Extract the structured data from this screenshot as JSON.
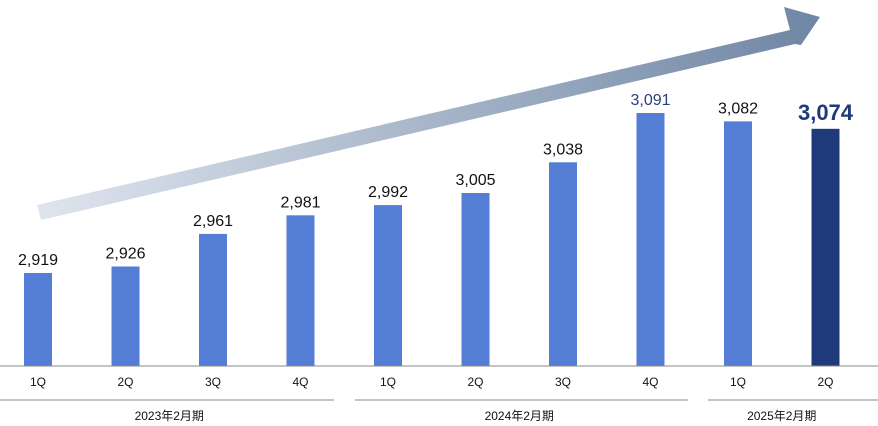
{
  "chart_data": {
    "type": "bar",
    "categories": [
      "1Q",
      "2Q",
      "3Q",
      "4Q",
      "1Q",
      "2Q",
      "3Q",
      "4Q",
      "1Q",
      "2Q"
    ],
    "values": [
      2919,
      2926,
      2961,
      2981,
      2992,
      3005,
      3038,
      3091,
      3082,
      3074
    ],
    "value_labels": [
      "2,919",
      "2,926",
      "2,961",
      "2,981",
      "2,992",
      "3,005",
      "3,038",
      "3,091",
      "3,082",
      "3,074"
    ],
    "groups": [
      {
        "label": "2023年2月期",
        "start": 0,
        "count": 4
      },
      {
        "label": "2024年2月期",
        "start": 4,
        "count": 4
      },
      {
        "label": "2025年2月期",
        "start": 8,
        "count": 2
      }
    ],
    "highlight_index": 9,
    "accent_label_index": 7,
    "title": "",
    "xlabel": "",
    "ylabel": "",
    "colors": {
      "bar": "#547ed6",
      "bar_latest": "#1f3a7a",
      "accent_text": "#2b3f7a",
      "arrow_start": "#dfe5ee",
      "arrow_end": "#6f86a4"
    }
  }
}
